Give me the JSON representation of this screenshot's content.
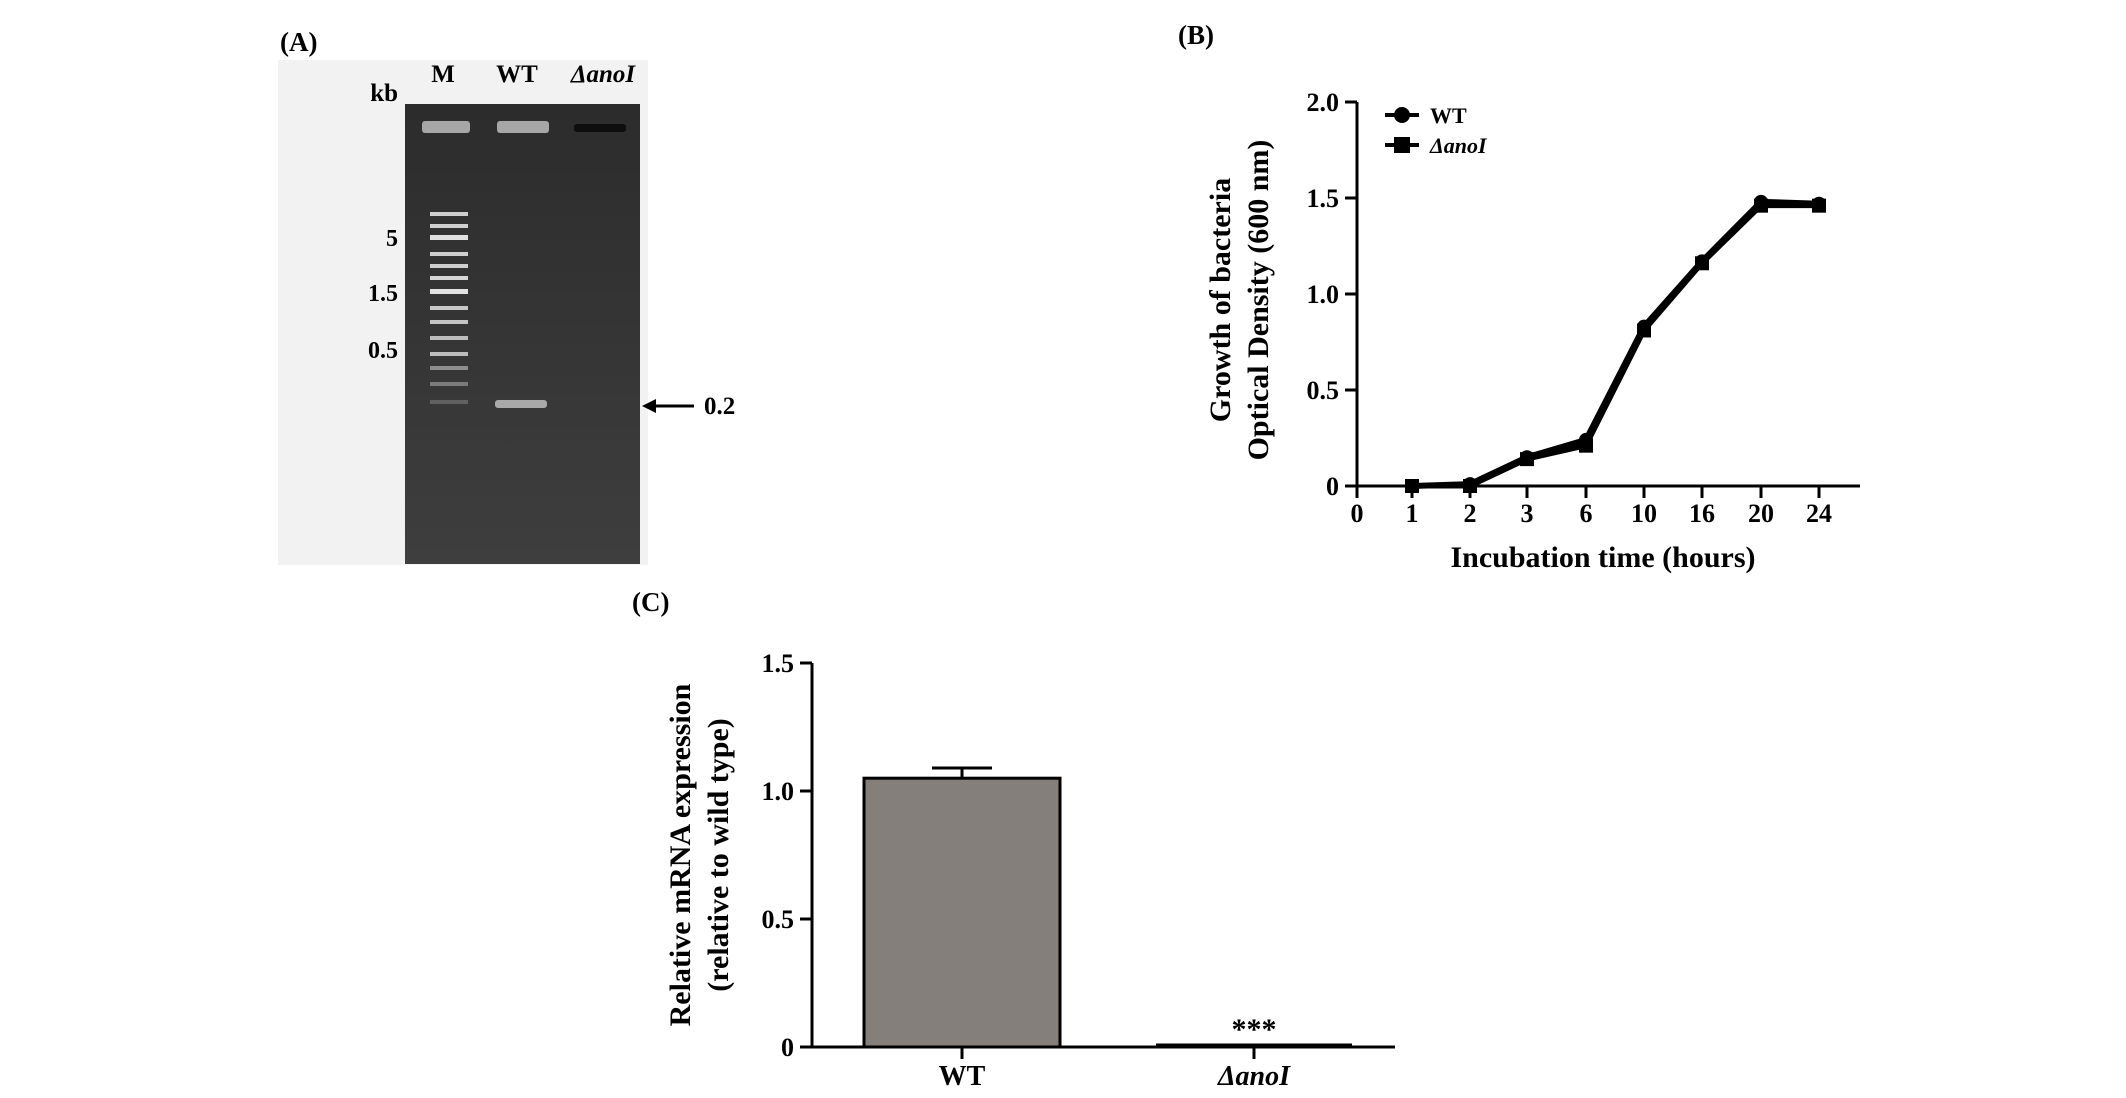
{
  "panels": {
    "a": {
      "label": "(A)",
      "lane_labels": [
        "M",
        "WT",
        "ΔanoI"
      ],
      "unit_label": "kb",
      "marker_labels": [
        "5",
        "1.5",
        "0.5"
      ],
      "band_label": "0.2",
      "gel_color": "#3a3a3a"
    },
    "b": {
      "label": "(B)"
    },
    "c": {
      "label": "(C)"
    }
  },
  "chart_data": [
    {
      "id": "gel",
      "type": "other",
      "description_kind": "agarose gel electrophoresis",
      "lanes": [
        "M",
        "WT",
        "ΔanoI"
      ],
      "markers_kb": [
        5,
        1.5,
        0.5
      ],
      "product_kb": 0.2,
      "product_present_in": [
        "WT"
      ]
    },
    {
      "id": "growth",
      "type": "line",
      "title": "",
      "xlabel": "Incubation time (hours)",
      "ylabel_lines": [
        "Growth of bacteria",
        "Optical Density (600 nm)"
      ],
      "categories": [
        "0",
        "1",
        "2",
        "3",
        "6",
        "10",
        "16",
        "20",
        "24"
      ],
      "ylim": [
        0,
        2.0
      ],
      "yticks": [
        "0",
        "0.5",
        "1.0",
        "1.5",
        "2.0"
      ],
      "ytick_values": [
        0,
        0.5,
        1.0,
        1.5,
        2.0
      ],
      "legend_position": "top-left",
      "series": [
        {
          "name": "WT",
          "marker": "circle",
          "color": "#000000",
          "values": [
            null,
            0.0,
            0.01,
            0.15,
            0.24,
            0.83,
            1.17,
            1.48,
            1.47
          ]
        },
        {
          "name": "ΔanoI",
          "marker": "square",
          "color": "#000000",
          "values": [
            null,
            0.0,
            0.0,
            0.14,
            0.21,
            0.81,
            1.16,
            1.46,
            1.46
          ]
        }
      ]
    },
    {
      "id": "mrna",
      "type": "bar",
      "title": "",
      "xlabel": "",
      "ylabel_lines": [
        "Relative mRNA expression",
        "(relative to wild type)"
      ],
      "categories": [
        "WT",
        "ΔanoI"
      ],
      "values": [
        1.05,
        0.0
      ],
      "errors": [
        0.04,
        0.0
      ],
      "ylim": [
        0,
        1.5
      ],
      "yticks": [
        "0",
        "0.5",
        "1.0",
        "1.5"
      ],
      "ytick_values": [
        0,
        0.5,
        1.0,
        1.5
      ],
      "annotations": [
        "",
        "***"
      ],
      "bar_color": "#857f7b"
    }
  ]
}
